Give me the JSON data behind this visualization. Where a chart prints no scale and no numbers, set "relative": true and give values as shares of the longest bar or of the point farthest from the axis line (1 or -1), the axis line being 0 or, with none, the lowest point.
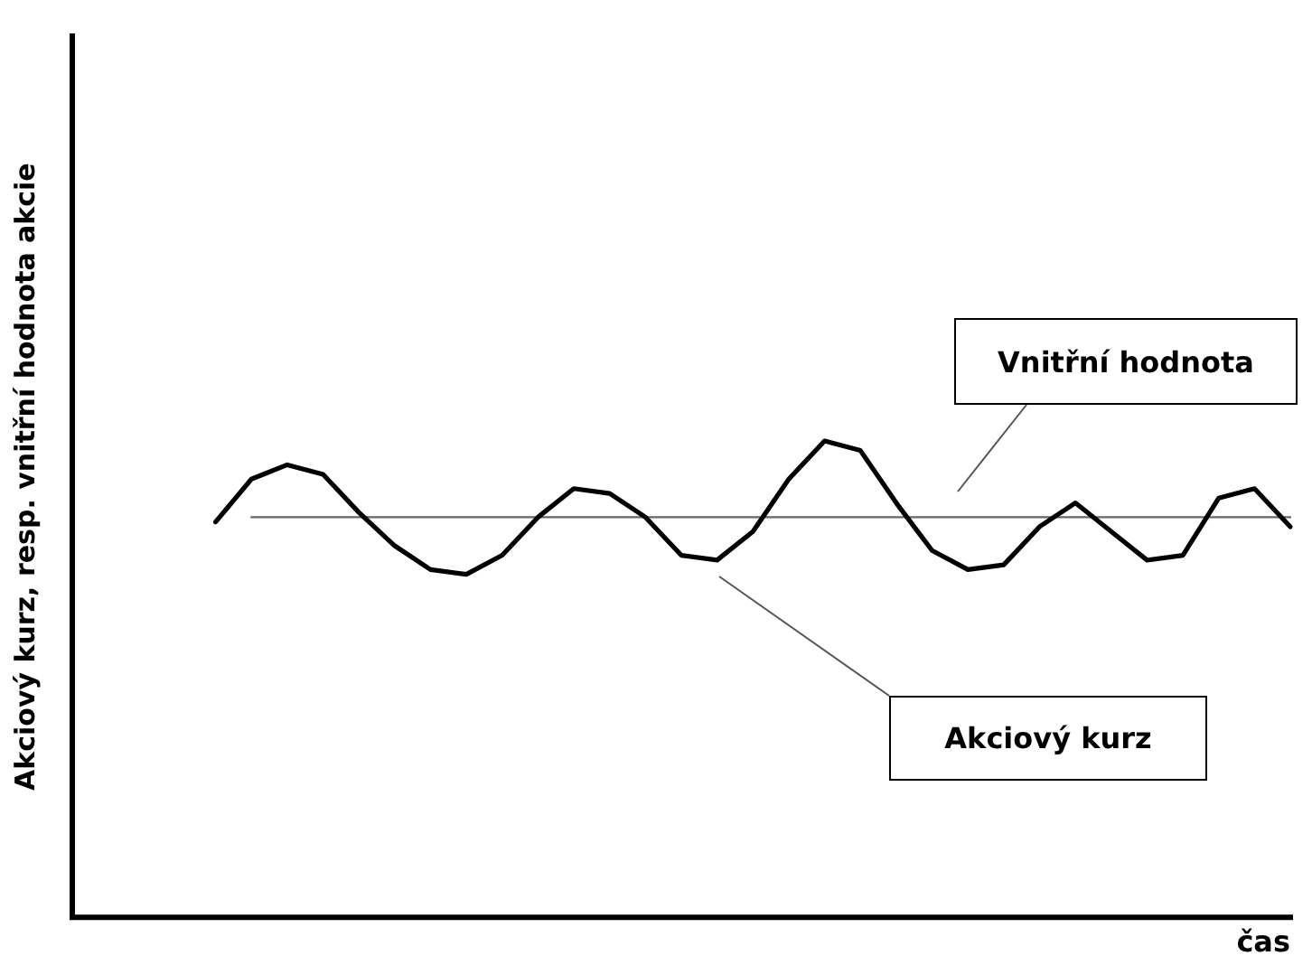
{
  "chart_data": {
    "type": "line",
    "relative": true,
    "xlabel": "čas",
    "ylabel": "Akciový kurz, resp. vnitřní hodnota akcie",
    "grid": false,
    "legend": false,
    "marker": "none",
    "line_style": "solid",
    "categories": [
      null,
      null,
      null,
      null,
      null,
      null,
      null,
      null,
      null,
      null,
      null,
      null,
      null,
      null,
      null,
      null,
      null,
      null,
      null,
      null,
      null,
      null,
      null,
      null,
      null,
      null,
      null,
      null,
      null,
      null,
      null,
      null,
      null,
      null,
      null
    ],
    "series": [
      {
        "color": "#000000",
        "values": [
          null,
          null,
          null,
          null,
          0.83,
          0.92,
          0.95,
          0.93,
          0.85,
          0.78,
          0.73,
          0.72,
          0.76,
          0.84,
          0.9,
          0.89,
          0.84,
          0.76,
          0.75,
          0.81,
          0.92,
          1,
          0.98,
          0.87,
          0.77,
          0.73,
          0.74,
          0.82,
          0.87,
          0.81,
          0.75,
          0.76,
          0.88,
          0.9,
          0.82
        ]
      },
      {
        "color": "#666666",
        "values": [
          null,
          null,
          null,
          null,
          null,
          0.84,
          0.84,
          0.84,
          0.84,
          0.84,
          0.84,
          0.84,
          0.84,
          0.84,
          0.84,
          0.84,
          0.84,
          0.84,
          0.84,
          0.84,
          0.84,
          0.84,
          0.84,
          0.84,
          0.84,
          0.84,
          0.84,
          0.84,
          0.84,
          0.84,
          0.84,
          0.84,
          0.84,
          0.84,
          0.84
        ]
      }
    ],
    "annotations": [
      "Vnitřní hodnota",
      "Akciový kurz"
    ]
  }
}
